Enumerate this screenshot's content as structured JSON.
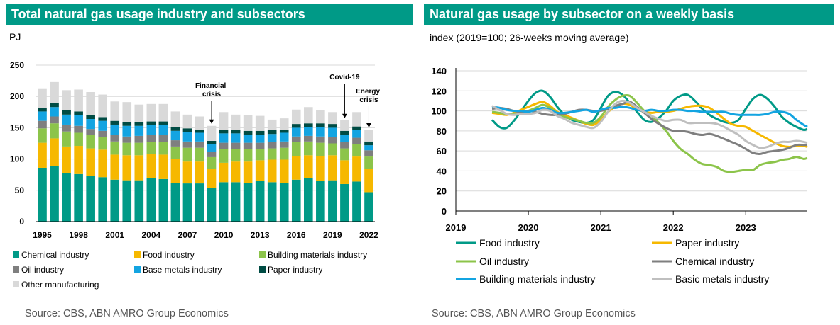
{
  "left": {
    "title": "Total natural gas usage industry and subsectors",
    "source": "Source: CBS, ABN AMRO Group Economics"
  },
  "right": {
    "title": "Natural gas usage by subsector on a weekly basis",
    "source": "Source: CBS, ABN AMRO Group Economics"
  },
  "colors": {
    "teal": "#009A87",
    "yellow": "#F6B800",
    "green": "#8CC44A",
    "gray": "#7F7F7F",
    "blue": "#13A4E1",
    "darkgreen": "#004C44",
    "lightgray": "#D9D9D9",
    "silver": "#BFBFBF"
  },
  "chart_data": [
    {
      "type": "bar",
      "stacked": true,
      "title": "Total natural gas usage industry and subsectors",
      "ylabel": "PJ",
      "ylim": [
        0,
        250
      ],
      "yticks": [
        0,
        50,
        100,
        150,
        200,
        250
      ],
      "grid": true,
      "legend_position": "bottom",
      "categories": [
        "1995",
        "1996",
        "1997",
        "1998",
        "1999",
        "2000",
        "2001",
        "2002",
        "2003",
        "2004",
        "2005",
        "2006",
        "2007",
        "2008",
        "2009",
        "2010",
        "2011",
        "2012",
        "2013",
        "2014",
        "2015",
        "2016",
        "2017",
        "2018",
        "2019",
        "2020",
        "2021",
        "2022"
      ],
      "xtick_labels": [
        "1995",
        "1998",
        "2001",
        "2004",
        "2007",
        "2010",
        "2013",
        "2016",
        "2019",
        "2022"
      ],
      "annotations": [
        {
          "text": "Financial crisis",
          "category": "2009"
        },
        {
          "text": "Covid-19",
          "category": "2020"
        },
        {
          "text": "Energy crisis",
          "category": "2022"
        }
      ],
      "series": [
        {
          "name": "Chemical industry",
          "color": "#009A87",
          "values": [
            86,
            89,
            77,
            76,
            73,
            71,
            67,
            66,
            66,
            69,
            68,
            62,
            61,
            61,
            54,
            63,
            63,
            62,
            65,
            63,
            62,
            67,
            69,
            65,
            66,
            60,
            64,
            47
          ]
        },
        {
          "name": "Food industry",
          "color": "#F6B800",
          "values": [
            40,
            44,
            43,
            45,
            44,
            44,
            40,
            40,
            40,
            39,
            39,
            38,
            35,
            35,
            30,
            31,
            33,
            34,
            33,
            36,
            37,
            38,
            37,
            40,
            40,
            38,
            40,
            37
          ]
        },
        {
          "name": "Building materials industry",
          "color": "#8CC44A",
          "values": [
            23,
            24,
            24,
            21,
            21,
            20,
            21,
            20,
            20,
            19,
            20,
            20,
            22,
            22,
            19,
            22,
            20,
            20,
            18,
            18,
            19,
            22,
            22,
            21,
            19,
            19,
            20,
            20
          ]
        },
        {
          "name": "Oil industry",
          "color": "#7F7F7F",
          "values": [
            12,
            11,
            11,
            11,
            10,
            10,
            10,
            10,
            11,
            11,
            11,
            10,
            10,
            10,
            8,
            10,
            10,
            10,
            10,
            10,
            10,
            9,
            9,
            10,
            10,
            10,
            10,
            10
          ]
        },
        {
          "name": "Base metals industry",
          "color": "#13A4E1",
          "values": [
            15,
            15,
            16,
            17,
            16,
            16,
            17,
            17,
            16,
            16,
            16,
            15,
            15,
            14,
            13,
            15,
            15,
            13,
            13,
            13,
            14,
            14,
            14,
            15,
            15,
            12,
            12,
            8
          ]
        },
        {
          "name": "Paper industry",
          "color": "#004C44",
          "values": [
            6,
            6,
            7,
            6,
            6,
            6,
            6,
            6,
            6,
            6,
            6,
            6,
            6,
            5,
            5,
            6,
            6,
            6,
            6,
            6,
            5,
            6,
            6,
            6,
            6,
            6,
            6,
            6
          ]
        },
        {
          "name": "Other manufacturing",
          "color": "#D9D9D9",
          "values": [
            31,
            34,
            32,
            35,
            37,
            36,
            31,
            32,
            28,
            28,
            28,
            25,
            22,
            21,
            24,
            28,
            24,
            25,
            24,
            17,
            18,
            23,
            26,
            21,
            19,
            17,
            23,
            19
          ]
        }
      ]
    },
    {
      "type": "line",
      "title": "Natural gas usage by subsector on a weekly basis",
      "subtitle": "index (2019=100; 26-weeks moving average)",
      "xlim": [
        2019,
        2023.85
      ],
      "ylim": [
        0,
        140
      ],
      "yticks": [
        0,
        20,
        40,
        60,
        80,
        100,
        120,
        140
      ],
      "xtick_labels": [
        "2019",
        "2020",
        "2021",
        "2022",
        "2023"
      ],
      "grid": true,
      "legend_position": "bottom",
      "series": [
        {
          "name": "Food industry",
          "color": "#009A87",
          "x": [
            2019.5,
            2019.6,
            2019.7,
            2019.8,
            2019.9,
            2020.0,
            2020.1,
            2020.2,
            2020.3,
            2020.4,
            2020.5,
            2020.6,
            2020.7,
            2020.8,
            2020.9,
            2021.0,
            2021.1,
            2021.2,
            2021.3,
            2021.4,
            2021.5,
            2021.6,
            2021.7,
            2021.8,
            2021.9,
            2022.0,
            2022.1,
            2022.2,
            2022.3,
            2022.4,
            2022.5,
            2022.6,
            2022.7,
            2022.8,
            2022.9,
            2023.0,
            2023.1,
            2023.2,
            2023.3,
            2023.4,
            2023.5,
            2023.6,
            2023.7,
            2023.8,
            2023.85
          ],
          "y": [
            91,
            84,
            83,
            90,
            100,
            110,
            118,
            120,
            114,
            104,
            96,
            91,
            89,
            88,
            91,
            103,
            115,
            119,
            116,
            108,
            99,
            91,
            89,
            93,
            100,
            110,
            115,
            116,
            110,
            102,
            96,
            92,
            89,
            88,
            91,
            102,
            112,
            116,
            112,
            104,
            94,
            88,
            84,
            81,
            82
          ]
        },
        {
          "name": "Paper industry",
          "color": "#F6B800",
          "x": [
            2019.5,
            2019.6,
            2019.7,
            2019.8,
            2019.9,
            2020.0,
            2020.1,
            2020.2,
            2020.3,
            2020.4,
            2020.5,
            2020.6,
            2020.7,
            2020.8,
            2020.9,
            2021.0,
            2021.1,
            2021.2,
            2021.3,
            2021.4,
            2021.5,
            2021.6,
            2021.7,
            2021.8,
            2021.9,
            2022.0,
            2022.1,
            2022.2,
            2022.3,
            2022.4,
            2022.5,
            2022.6,
            2022.7,
            2022.8,
            2022.9,
            2023.0,
            2023.1,
            2023.2,
            2023.3,
            2023.4,
            2023.5,
            2023.6,
            2023.7,
            2023.8,
            2023.85
          ],
          "y": [
            98,
            97,
            96,
            98,
            101,
            104,
            107,
            109,
            105,
            99,
            96,
            93,
            90,
            87,
            86,
            91,
            99,
            104,
            107,
            106,
            102,
            99,
            98,
            99,
            99,
            100,
            102,
            104,
            105,
            105,
            103,
            98,
            92,
            87,
            85,
            84,
            80,
            76,
            72,
            68,
            65,
            64,
            65,
            65,
            64
          ]
        },
        {
          "name": "Oil industry",
          "color": "#8CC44A",
          "x": [
            2019.5,
            2019.6,
            2019.7,
            2019.8,
            2019.9,
            2020.0,
            2020.1,
            2020.2,
            2020.3,
            2020.4,
            2020.5,
            2020.6,
            2020.7,
            2020.8,
            2020.9,
            2021.0,
            2021.1,
            2021.2,
            2021.3,
            2021.4,
            2021.5,
            2021.6,
            2021.7,
            2021.8,
            2021.9,
            2022.0,
            2022.1,
            2022.2,
            2022.3,
            2022.4,
            2022.5,
            2022.6,
            2022.7,
            2022.8,
            2022.9,
            2023.0,
            2023.1,
            2023.2,
            2023.3,
            2023.4,
            2023.5,
            2023.6,
            2023.7,
            2023.8,
            2023.85
          ],
          "y": [
            99,
            98,
            97,
            97,
            98,
            100,
            103,
            106,
            103,
            98,
            94,
            92,
            90,
            88,
            88,
            94,
            104,
            111,
            115,
            115,
            108,
            100,
            95,
            88,
            80,
            70,
            62,
            57,
            51,
            47,
            46,
            44,
            40,
            39,
            40,
            41,
            41,
            46,
            48,
            49,
            51,
            52,
            54,
            52,
            53
          ]
        },
        {
          "name": "Chemical industry",
          "color": "#7F7F7F",
          "x": [
            2019.5,
            2019.6,
            2019.7,
            2019.8,
            2019.9,
            2020.0,
            2020.1,
            2020.2,
            2020.3,
            2020.4,
            2020.5,
            2020.6,
            2020.7,
            2020.8,
            2020.9,
            2021.0,
            2021.1,
            2021.2,
            2021.3,
            2021.4,
            2021.5,
            2021.6,
            2021.7,
            2021.8,
            2021.9,
            2022.0,
            2022.1,
            2022.2,
            2022.3,
            2022.4,
            2022.5,
            2022.6,
            2022.7,
            2022.8,
            2022.9,
            2023.0,
            2023.1,
            2023.2,
            2023.3,
            2023.4,
            2023.5,
            2023.6,
            2023.7,
            2023.8,
            2023.85
          ],
          "y": [
            102,
            103,
            102,
            100,
            99,
            100,
            99,
            97,
            96,
            96,
            97,
            99,
            101,
            101,
            100,
            100,
            102,
            105,
            107,
            109,
            104,
            98,
            92,
            87,
            83,
            80,
            80,
            79,
            77,
            76,
            77,
            75,
            72,
            69,
            66,
            62,
            58,
            57,
            59,
            60,
            61,
            63,
            66,
            66,
            66
          ]
        },
        {
          "name": "Building materials industry",
          "color": "#13A4E1",
          "x": [
            2019.5,
            2019.6,
            2019.7,
            2019.8,
            2019.9,
            2020.0,
            2020.1,
            2020.2,
            2020.3,
            2020.4,
            2020.5,
            2020.6,
            2020.7,
            2020.8,
            2020.9,
            2021.0,
            2021.1,
            2021.2,
            2021.3,
            2021.4,
            2021.5,
            2021.6,
            2021.7,
            2021.8,
            2021.9,
            2022.0,
            2022.1,
            2022.2,
            2022.3,
            2022.4,
            2022.5,
            2022.6,
            2022.7,
            2022.8,
            2022.9,
            2023.0,
            2023.1,
            2023.2,
            2023.3,
            2023.4,
            2023.5,
            2023.6,
            2023.7,
            2023.8,
            2023.85
          ],
          "y": [
            104,
            103,
            101,
            100,
            100,
            99,
            101,
            103,
            101,
            98,
            98,
            99,
            100,
            101,
            99,
            101,
            103,
            103,
            104,
            103,
            101,
            100,
            101,
            100,
            100,
            101,
            101,
            100,
            100,
            99,
            99,
            99,
            99,
            97,
            96,
            96,
            96,
            96,
            97,
            99,
            99,
            97,
            91,
            86,
            84
          ]
        },
        {
          "name": "Basic metals industry",
          "color": "#BFBFBF",
          "x": [
            2019.5,
            2019.6,
            2019.7,
            2019.8,
            2019.9,
            2020.0,
            2020.1,
            2020.2,
            2020.3,
            2020.4,
            2020.5,
            2020.6,
            2020.7,
            2020.8,
            2020.9,
            2021.0,
            2021.1,
            2021.2,
            2021.3,
            2021.4,
            2021.5,
            2021.6,
            2021.7,
            2021.8,
            2021.9,
            2022.0,
            2022.1,
            2022.2,
            2022.3,
            2022.4,
            2022.5,
            2022.6,
            2022.7,
            2022.8,
            2022.9,
            2023.0,
            2023.1,
            2023.2,
            2023.3,
            2023.4,
            2023.5,
            2023.6,
            2023.7,
            2023.8,
            2023.85
          ],
          "y": [
            105,
            101,
            97,
            96,
            97,
            97,
            98,
            101,
            100,
            95,
            92,
            88,
            86,
            84,
            83,
            89,
            99,
            107,
            110,
            108,
            103,
            99,
            95,
            92,
            90,
            91,
            91,
            88,
            88,
            88,
            88,
            87,
            84,
            80,
            76,
            70,
            66,
            63,
            64,
            67,
            69,
            69,
            70,
            69,
            68
          ]
        }
      ]
    }
  ]
}
